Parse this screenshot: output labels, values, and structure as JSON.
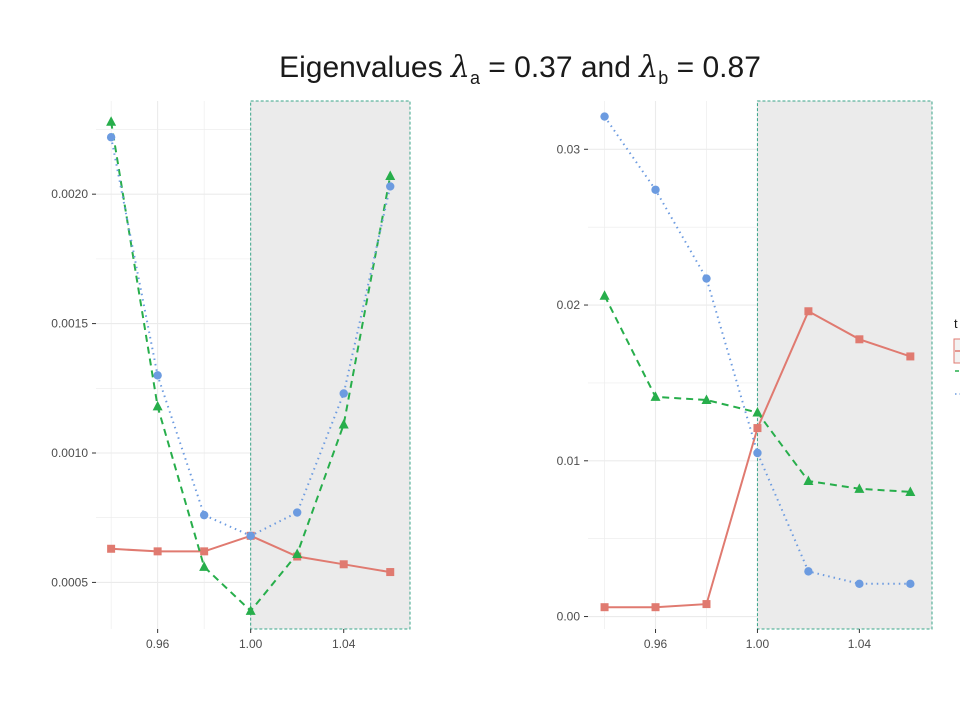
{
  "title": {
    "prefix": "Eigenvalues ",
    "sym_a": "λ",
    "sub_a": "a",
    "mid": " = 0.37 and ",
    "sym_b": "λ",
    "sub_b": "b",
    "suffix": " = 0.87"
  },
  "legend": {
    "title_fragment": "t"
  },
  "colors": {
    "red": "#E07A70",
    "green": "#27AE4B",
    "blue": "#6C9BE0",
    "shade_fill": "#EBEBEB",
    "shade_border": "#3AA68A",
    "grid": "#EBEBEB"
  },
  "chart_data": [
    {
      "type": "line",
      "title": "",
      "xlabel": "",
      "ylabel": "",
      "xlim": [
        0.9335,
        1.0685
      ],
      "ylim": [
        0.00032,
        0.00236
      ],
      "x_ticks": [
        0.96,
        1.0,
        1.04
      ],
      "x_tick_labels": [
        "0.96",
        "1.00",
        "1.04"
      ],
      "y_ticks": [
        0.0005,
        0.001,
        0.0015,
        0.002
      ],
      "y_tick_labels": [
        "0.0005",
        "0.0010",
        "0.0015",
        "0.0020"
      ],
      "shaded_x": [
        1.0,
        1.0685
      ],
      "grid": true,
      "series": [
        {
          "color_key": "red",
          "marker": "square",
          "dash": "solid",
          "x": [
            0.94,
            0.96,
            0.98,
            1.0,
            1.02,
            1.04,
            1.06
          ],
          "values": [
            0.00063,
            0.00062,
            0.00062,
            0.00068,
            0.0006,
            0.00057,
            0.00054
          ]
        },
        {
          "color_key": "green",
          "marker": "triangle",
          "dash": "dashed",
          "x": [
            0.94,
            0.96,
            0.98,
            1.0,
            1.02,
            1.04,
            1.06
          ],
          "values": [
            0.00228,
            0.00118,
            0.00056,
            0.00039,
            0.00061,
            0.00111,
            0.00207
          ]
        },
        {
          "color_key": "blue",
          "marker": "circle",
          "dash": "dotted",
          "x": [
            0.94,
            0.96,
            0.98,
            1.0,
            1.02,
            1.04,
            1.06
          ],
          "values": [
            0.00222,
            0.0013,
            0.00076,
            0.00068,
            0.00077,
            0.00123,
            0.00203
          ]
        }
      ]
    },
    {
      "type": "line",
      "title": "",
      "xlabel": "",
      "ylabel": "",
      "xlim": [
        0.9335,
        1.0685
      ],
      "ylim": [
        -0.0008,
        0.0331
      ],
      "x_ticks": [
        0.96,
        1.0,
        1.04
      ],
      "x_tick_labels": [
        "0.96",
        "1.00",
        "1.04"
      ],
      "y_ticks": [
        0.0,
        0.01,
        0.02,
        0.03
      ],
      "y_tick_labels": [
        "0.00",
        "0.01",
        "0.02",
        "0.03"
      ],
      "shaded_x": [
        1.0,
        1.0685
      ],
      "grid": true,
      "series": [
        {
          "color_key": "red",
          "marker": "square",
          "dash": "solid",
          "x": [
            0.94,
            0.96,
            0.98,
            1.0,
            1.02,
            1.04,
            1.06
          ],
          "values": [
            0.0006,
            0.0006,
            0.0008,
            0.0121,
            0.0196,
            0.0178,
            0.0167
          ]
        },
        {
          "color_key": "green",
          "marker": "triangle",
          "dash": "dashed",
          "x": [
            0.94,
            0.96,
            0.98,
            1.0,
            1.02,
            1.04,
            1.06
          ],
          "values": [
            0.0206,
            0.0141,
            0.0139,
            0.0131,
            0.0087,
            0.0082,
            0.008
          ]
        },
        {
          "color_key": "blue",
          "marker": "circle",
          "dash": "dotted",
          "x": [
            0.94,
            0.96,
            0.98,
            1.0,
            1.02,
            1.04,
            1.06
          ],
          "values": [
            0.0321,
            0.0274,
            0.0217,
            0.0105,
            0.0029,
            0.0021,
            0.0021
          ]
        }
      ]
    }
  ]
}
